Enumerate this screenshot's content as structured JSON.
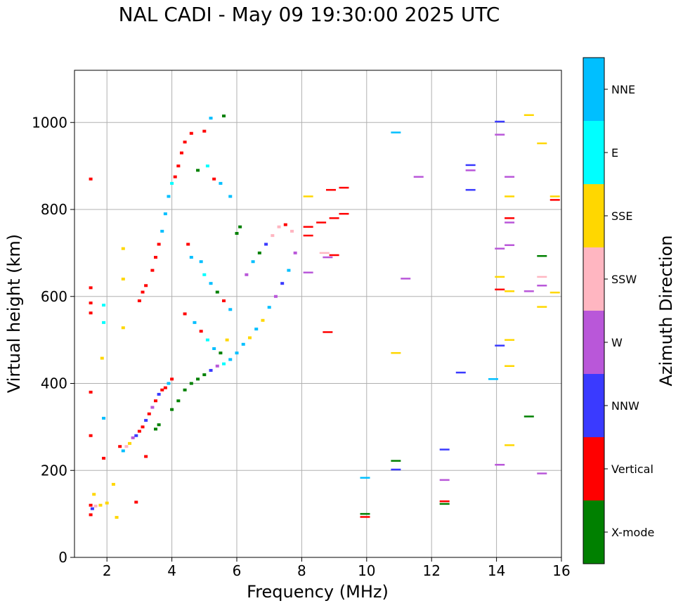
{
  "chart_data": {
    "type": "scatter",
    "title": "NAL CADI - May 09 19:30:00 2025 UTC",
    "xlabel": "Frequency (MHz)",
    "ylabel": "Virtual height (km)",
    "xlim": [
      1,
      16
    ],
    "ylim": [
      0,
      1120
    ],
    "xticks": [
      2,
      4,
      6,
      8,
      10,
      12,
      14,
      16
    ],
    "yticks": [
      0,
      200,
      400,
      600,
      800,
      1000
    ],
    "grid": true,
    "colorbar": {
      "label": "Azimuth Direction",
      "categories": [
        {
          "name": "X-mode",
          "color": "#008000"
        },
        {
          "name": "Vertical",
          "color": "#ff0000"
        },
        {
          "name": "NNW",
          "color": "#3a3aff"
        },
        {
          "name": "W",
          "color": "#b957d9"
        },
        {
          "name": "SSW",
          "color": "#ffb6c1"
        },
        {
          "name": "SSE",
          "color": "#ffd700"
        },
        {
          "name": "E",
          "color": "#00ffff"
        },
        {
          "name": "NNE",
          "color": "#00bfff"
        }
      ]
    },
    "points": [
      {
        "f": 1.5,
        "h": 870,
        "c": "Vertical"
      },
      {
        "f": 1.5,
        "h": 620,
        "c": "Vertical"
      },
      {
        "f": 1.5,
        "h": 585,
        "c": "Vertical"
      },
      {
        "f": 1.5,
        "h": 562,
        "c": "Vertical"
      },
      {
        "f": 1.5,
        "h": 380,
        "c": "Vertical"
      },
      {
        "f": 1.5,
        "h": 280,
        "c": "Vertical"
      },
      {
        "f": 1.5,
        "h": 120,
        "c": "Vertical"
      },
      {
        "f": 1.5,
        "h": 98,
        "c": "Vertical"
      },
      {
        "f": 1.55,
        "h": 112,
        "c": "NNW"
      },
      {
        "f": 1.6,
        "h": 145,
        "c": "SSE"
      },
      {
        "f": 1.65,
        "h": 118,
        "c": "SSW"
      },
      {
        "f": 1.8,
        "h": 120,
        "c": "SSE"
      },
      {
        "f": 1.9,
        "h": 580,
        "c": "E"
      },
      {
        "f": 1.9,
        "h": 540,
        "c": "E"
      },
      {
        "f": 1.9,
        "h": 320,
        "c": "NNE"
      },
      {
        "f": 1.9,
        "h": 228,
        "c": "Vertical"
      },
      {
        "f": 1.85,
        "h": 458,
        "c": "SSE"
      },
      {
        "f": 2.0,
        "h": 125,
        "c": "SSE"
      },
      {
        "f": 2.2,
        "h": 168,
        "c": "SSE"
      },
      {
        "f": 2.3,
        "h": 92,
        "c": "SSE"
      },
      {
        "f": 2.5,
        "h": 710,
        "c": "SSE"
      },
      {
        "f": 2.5,
        "h": 640,
        "c": "SSE"
      },
      {
        "f": 2.5,
        "h": 528,
        "c": "SSE"
      },
      {
        "f": 2.4,
        "h": 255,
        "c": "Vertical"
      },
      {
        "f": 2.5,
        "h": 245,
        "c": "NNE"
      },
      {
        "f": 2.6,
        "h": 255,
        "c": "SSW"
      },
      {
        "f": 2.7,
        "h": 262,
        "c": "SSE"
      },
      {
        "f": 2.8,
        "h": 275,
        "c": "W"
      },
      {
        "f": 2.9,
        "h": 280,
        "c": "NNW"
      },
      {
        "f": 3.0,
        "h": 290,
        "c": "Vertical"
      },
      {
        "f": 3.1,
        "h": 300,
        "c": "Vertical"
      },
      {
        "f": 3.2,
        "h": 315,
        "c": "NNW"
      },
      {
        "f": 3.2,
        "h": 232,
        "c": "Vertical"
      },
      {
        "f": 2.9,
        "h": 127,
        "c": "Vertical"
      },
      {
        "f": 3.3,
        "h": 330,
        "c": "Vertical"
      },
      {
        "f": 3.4,
        "h": 345,
        "c": "W"
      },
      {
        "f": 3.5,
        "h": 360,
        "c": "Vertical"
      },
      {
        "f": 3.5,
        "h": 295,
        "c": "X-mode"
      },
      {
        "f": 3.6,
        "h": 305,
        "c": "X-mode"
      },
      {
        "f": 3.6,
        "h": 375,
        "c": "NNW"
      },
      {
        "f": 3.7,
        "h": 385,
        "c": "Vertical"
      },
      {
        "f": 3.8,
        "h": 390,
        "c": "Vertical"
      },
      {
        "f": 3.9,
        "h": 400,
        "c": "NNE"
      },
      {
        "f": 4.0,
        "h": 410,
        "c": "Vertical"
      },
      {
        "f": 4.0,
        "h": 340,
        "c": "X-mode"
      },
      {
        "f": 4.2,
        "h": 360,
        "c": "X-mode"
      },
      {
        "f": 4.4,
        "h": 385,
        "c": "X-mode"
      },
      {
        "f": 4.6,
        "h": 400,
        "c": "X-mode"
      },
      {
        "f": 4.8,
        "h": 410,
        "c": "X-mode"
      },
      {
        "f": 5.0,
        "h": 420,
        "c": "X-mode"
      },
      {
        "f": 5.2,
        "h": 430,
        "c": "NNW"
      },
      {
        "f": 5.4,
        "h": 440,
        "c": "W"
      },
      {
        "f": 5.6,
        "h": 445,
        "c": "E"
      },
      {
        "f": 5.8,
        "h": 455,
        "c": "NNE"
      },
      {
        "f": 6.0,
        "h": 470,
        "c": "NNE"
      },
      {
        "f": 6.2,
        "h": 490,
        "c": "NNE"
      },
      {
        "f": 6.4,
        "h": 505,
        "c": "SSE"
      },
      {
        "f": 6.6,
        "h": 525,
        "c": "NNE"
      },
      {
        "f": 6.8,
        "h": 545,
        "c": "SSE"
      },
      {
        "f": 7.0,
        "h": 575,
        "c": "NNE"
      },
      {
        "f": 7.2,
        "h": 600,
        "c": "W"
      },
      {
        "f": 7.4,
        "h": 630,
        "c": "NNW"
      },
      {
        "f": 7.6,
        "h": 660,
        "c": "NNE"
      },
      {
        "f": 7.8,
        "h": 700,
        "c": "W"
      },
      {
        "f": 3.0,
        "h": 590,
        "c": "Vertical"
      },
      {
        "f": 3.1,
        "h": 610,
        "c": "Vertical"
      },
      {
        "f": 3.2,
        "h": 625,
        "c": "Vertical"
      },
      {
        "f": 3.4,
        "h": 660,
        "c": "Vertical"
      },
      {
        "f": 3.5,
        "h": 690,
        "c": "Vertical"
      },
      {
        "f": 3.6,
        "h": 720,
        "c": "Vertical"
      },
      {
        "f": 3.7,
        "h": 750,
        "c": "NNE"
      },
      {
        "f": 3.8,
        "h": 790,
        "c": "NNE"
      },
      {
        "f": 3.9,
        "h": 830,
        "c": "NNE"
      },
      {
        "f": 4.0,
        "h": 860,
        "c": "E"
      },
      {
        "f": 4.1,
        "h": 875,
        "c": "Vertical"
      },
      {
        "f": 4.2,
        "h": 900,
        "c": "Vertical"
      },
      {
        "f": 4.3,
        "h": 930,
        "c": "Vertical"
      },
      {
        "f": 4.4,
        "h": 955,
        "c": "Vertical"
      },
      {
        "f": 4.6,
        "h": 975,
        "c": "Vertical"
      },
      {
        "f": 5.0,
        "h": 980,
        "c": "Vertical"
      },
      {
        "f": 5.2,
        "h": 1010,
        "c": "NNE"
      },
      {
        "f": 5.6,
        "h": 1015,
        "c": "X-mode"
      },
      {
        "f": 4.8,
        "h": 890,
        "c": "X-mode"
      },
      {
        "f": 5.1,
        "h": 900,
        "c": "E"
      },
      {
        "f": 5.3,
        "h": 870,
        "c": "Vertical"
      },
      {
        "f": 5.5,
        "h": 860,
        "c": "NNE"
      },
      {
        "f": 5.8,
        "h": 830,
        "c": "NNE"
      },
      {
        "f": 6.1,
        "h": 760,
        "c": "X-mode"
      },
      {
        "f": 6.0,
        "h": 745,
        "c": "X-mode"
      },
      {
        "f": 4.5,
        "h": 720,
        "c": "Vertical"
      },
      {
        "f": 4.6,
        "h": 690,
        "c": "NNE"
      },
      {
        "f": 4.9,
        "h": 680,
        "c": "NNE"
      },
      {
        "f": 5.0,
        "h": 650,
        "c": "E"
      },
      {
        "f": 5.2,
        "h": 630,
        "c": "NNE"
      },
      {
        "f": 5.4,
        "h": 610,
        "c": "X-mode"
      },
      {
        "f": 5.6,
        "h": 590,
        "c": "Vertical"
      },
      {
        "f": 5.8,
        "h": 570,
        "c": "NNE"
      },
      {
        "f": 4.4,
        "h": 560,
        "c": "Vertical"
      },
      {
        "f": 4.7,
        "h": 540,
        "c": "NNE"
      },
      {
        "f": 4.9,
        "h": 520,
        "c": "Vertical"
      },
      {
        "f": 5.1,
        "h": 500,
        "c": "E"
      },
      {
        "f": 5.3,
        "h": 480,
        "c": "NNE"
      },
      {
        "f": 5.5,
        "h": 470,
        "c": "X-mode"
      },
      {
        "f": 5.7,
        "h": 500,
        "c": "SSE"
      },
      {
        "f": 6.3,
        "h": 650,
        "c": "W"
      },
      {
        "f": 6.5,
        "h": 680,
        "c": "NNE"
      },
      {
        "f": 6.7,
        "h": 700,
        "c": "X-mode"
      },
      {
        "f": 6.9,
        "h": 720,
        "c": "NNW"
      },
      {
        "f": 7.1,
        "h": 740,
        "c": "SSW"
      },
      {
        "f": 7.3,
        "h": 760,
        "c": "SSW"
      },
      {
        "f": 7.5,
        "h": 765,
        "c": "Vertical"
      },
      {
        "f": 7.7,
        "h": 750,
        "c": "SSW"
      },
      {
        "f": 8.2,
        "h": 760,
        "c": "Vertical"
      },
      {
        "f": 8.2,
        "h": 740,
        "c": "Vertical"
      },
      {
        "f": 8.2,
        "h": 655,
        "c": "W"
      },
      {
        "f": 8.2,
        "h": 830,
        "c": "SSE"
      },
      {
        "f": 8.6,
        "h": 770,
        "c": "Vertical"
      },
      {
        "f": 8.7,
        "h": 700,
        "c": "SSW"
      },
      {
        "f": 8.8,
        "h": 690,
        "c": "W"
      },
      {
        "f": 8.9,
        "h": 845,
        "c": "Vertical"
      },
      {
        "f": 9.0,
        "h": 780,
        "c": "Vertical"
      },
      {
        "f": 9.0,
        "h": 695,
        "c": "Vertical"
      },
      {
        "f": 9.3,
        "h": 790,
        "c": "Vertical"
      },
      {
        "f": 9.3,
        "h": 850,
        "c": "Vertical"
      },
      {
        "f": 8.8,
        "h": 518,
        "c": "Vertical"
      },
      {
        "f": 9.95,
        "h": 100,
        "c": "X-mode"
      },
      {
        "f": 9.95,
        "h": 93,
        "c": "Vertical"
      },
      {
        "f": 9.95,
        "h": 183,
        "c": "NNE"
      },
      {
        "f": 10.9,
        "h": 977,
        "c": "NNE"
      },
      {
        "f": 10.9,
        "h": 470,
        "c": "SSE"
      },
      {
        "f": 10.9,
        "h": 222,
        "c": "X-mode"
      },
      {
        "f": 10.9,
        "h": 202,
        "c": "NNW"
      },
      {
        "f": 11.2,
        "h": 641,
        "c": "W"
      },
      {
        "f": 11.6,
        "h": 875,
        "c": "W"
      },
      {
        "f": 12.4,
        "h": 248,
        "c": "NNW"
      },
      {
        "f": 12.4,
        "h": 178,
        "c": "W"
      },
      {
        "f": 12.4,
        "h": 129,
        "c": "Vertical"
      },
      {
        "f": 12.4,
        "h": 123,
        "c": "X-mode"
      },
      {
        "f": 12.9,
        "h": 425,
        "c": "NNW"
      },
      {
        "f": 13.2,
        "h": 902,
        "c": "NNW"
      },
      {
        "f": 13.2,
        "h": 890,
        "c": "W"
      },
      {
        "f": 13.2,
        "h": 845,
        "c": "NNW"
      },
      {
        "f": 13.9,
        "h": 410,
        "c": "NNE"
      },
      {
        "f": 14.1,
        "h": 1002,
        "c": "NNW"
      },
      {
        "f": 14.1,
        "h": 972,
        "c": "W"
      },
      {
        "f": 14.1,
        "h": 710,
        "c": "W"
      },
      {
        "f": 14.1,
        "h": 645,
        "c": "SSE"
      },
      {
        "f": 14.1,
        "h": 616,
        "c": "Vertical"
      },
      {
        "f": 14.1,
        "h": 487,
        "c": "NNW"
      },
      {
        "f": 14.1,
        "h": 213,
        "c": "W"
      },
      {
        "f": 14.4,
        "h": 875,
        "c": "W"
      },
      {
        "f": 14.4,
        "h": 830,
        "c": "SSE"
      },
      {
        "f": 14.4,
        "h": 780,
        "c": "Vertical"
      },
      {
        "f": 14.4,
        "h": 770,
        "c": "W"
      },
      {
        "f": 14.4,
        "h": 718,
        "c": "W"
      },
      {
        "f": 14.4,
        "h": 612,
        "c": "SSE"
      },
      {
        "f": 14.4,
        "h": 500,
        "c": "SSE"
      },
      {
        "f": 14.4,
        "h": 440,
        "c": "SSE"
      },
      {
        "f": 14.4,
        "h": 258,
        "c": "SSE"
      },
      {
        "f": 15.0,
        "h": 1017,
        "c": "SSE"
      },
      {
        "f": 15.0,
        "h": 612,
        "c": "W"
      },
      {
        "f": 15.0,
        "h": 324,
        "c": "X-mode"
      },
      {
        "f": 15.4,
        "h": 952,
        "c": "SSE"
      },
      {
        "f": 15.4,
        "h": 693,
        "c": "X-mode"
      },
      {
        "f": 15.4,
        "h": 645,
        "c": "SSW"
      },
      {
        "f": 15.4,
        "h": 625,
        "c": "W"
      },
      {
        "f": 15.4,
        "h": 576,
        "c": "SSE"
      },
      {
        "f": 15.4,
        "h": 193,
        "c": "W"
      },
      {
        "f": 15.8,
        "h": 830,
        "c": "SSE"
      },
      {
        "f": 15.8,
        "h": 822,
        "c": "Vertical"
      },
      {
        "f": 15.8,
        "h": 609,
        "c": "SSE"
      }
    ]
  }
}
